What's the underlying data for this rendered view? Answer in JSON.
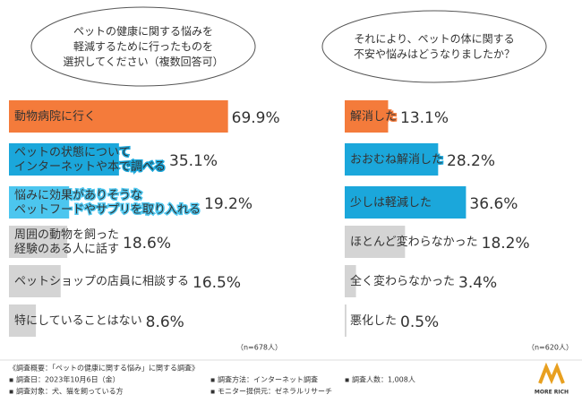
{
  "chart_data": [
    {
      "type": "bar",
      "title": [
        "ペットの健康に関する悩みを",
        "軽減するために行ったものを",
        "選択してください（複数回答可）"
      ],
      "categories": [
        "動物病院に行く",
        "ペットの状態について\nインターネットや本で調べる",
        "悩みに効果がありそうな\nペットフードやサプリを取り入れる",
        "周囲の動物を飼った\n経験のある人に話す",
        "ペットショップの店員に相談する",
        "特にしていることはない"
      ],
      "values": [
        69.9,
        35.1,
        19.2,
        18.6,
        16.5,
        8.6
      ],
      "value_labels": [
        "69.9%",
        "35.1%",
        "19.2%",
        "18.6%",
        "16.5%",
        "8.6%"
      ],
      "colors": [
        "#f47b3b",
        "#1ba7db",
        "#4cc6ef",
        "#d4d4d4",
        "#d4d4d4",
        "#d4d4d4"
      ],
      "note": "（n=678人）"
    },
    {
      "type": "bar",
      "title": [
        "それにより、ペットの体に関する",
        "不安や悩みはどうなりましたか？"
      ],
      "categories": [
        "解消した",
        "おおむね解消した",
        "少しは軽減した",
        "ほとんど変わらなかった",
        "全く変わらなかった",
        "悪化した"
      ],
      "values": [
        13.1,
        28.2,
        36.6,
        18.2,
        3.4,
        0.5
      ],
      "value_labels": [
        "13.1%",
        "28.2%",
        "36.6%",
        "18.2%",
        "3.4%",
        "0.5%"
      ],
      "colors": [
        "#f47b3b",
        "#1ba7db",
        "#1ba7db",
        "#d4d4d4",
        "#d4d4d4",
        "#d4d4d4"
      ],
      "note": "（n=620人）"
    }
  ],
  "footer": {
    "heading": "《調査概要：「ペットの健康に関する悩み」に関する調査》",
    "items": [
      "▪ 調査日：2023年10月6日（金）",
      "▪ 調査方法：インターネット調査",
      "▪ 調査人数：1,008人",
      "▪ 調査対象：犬、猫を飼っている方",
      "▪ モニター提供元：ゼネラルリサーチ"
    ],
    "logo": "MORE RICH"
  }
}
